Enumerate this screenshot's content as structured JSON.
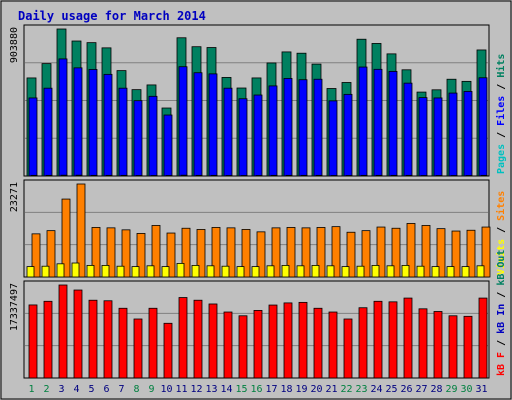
{
  "title": "Daily usage for March 2014",
  "colors": {
    "frame_bg": "#c0c0c0",
    "title": "#0000c0",
    "hits": "#008060",
    "files": "#0000ff",
    "pages": "#00c0c0",
    "visits": "#ffff00",
    "sites": "#ff8000",
    "kb_in": "#0000c0",
    "kb_out": "#008060",
    "kb_f": "#ff0000",
    "weekend_day": "#008040",
    "weekday_day": "#000080"
  },
  "chart_data": [
    {
      "type": "bar",
      "panel": "hits",
      "x": [
        1,
        2,
        3,
        4,
        5,
        6,
        7,
        8,
        9,
        10,
        11,
        12,
        13,
        14,
        15,
        16,
        17,
        18,
        19,
        20,
        21,
        22,
        23,
        24,
        25,
        26,
        27,
        28,
        29,
        30,
        31
      ],
      "ymax_label": "903880",
      "ylim": [
        0,
        903880
      ],
      "right_label": [
        "Pages",
        "Files",
        "Hits"
      ],
      "series": [
        {
          "name": "Hits",
          "values": [
            603000,
            691000,
            903880,
            830000,
            820000,
            788000,
            648000,
            531000,
            560000,
            418000,
            850000,
            795000,
            790000,
            606000,
            541000,
            603000,
            695000,
            763000,
            755000,
            688000,
            538000,
            575000,
            841000,
            815000,
            751000,
            653000,
            516000,
            530000,
            595000,
            582000,
            775000
          ]
        },
        {
          "name": "Files",
          "values": [
            480000,
            540000,
            720000,
            665000,
            655000,
            625000,
            540000,
            463000,
            490000,
            375000,
            672000,
            635000,
            628000,
            540000,
            475000,
            498000,
            554000,
            600000,
            592000,
            595000,
            462000,
            502000,
            670000,
            656000,
            643000,
            571000,
            482000,
            480000,
            510000,
            520000,
            604000
          ]
        },
        {
          "name": "Pages",
          "values": [
            4000,
            4000,
            5000,
            5000,
            4000,
            4000,
            4000,
            3000,
            3000,
            3000,
            5000,
            4000,
            4000,
            3000,
            3000,
            3000,
            4000,
            4000,
            4000,
            4000,
            3000,
            3000,
            4000,
            4000,
            4000,
            4000,
            3000,
            3000,
            3000,
            3000,
            4000
          ]
        }
      ]
    },
    {
      "type": "bar",
      "panel": "sites",
      "x": [
        1,
        2,
        3,
        4,
        5,
        6,
        7,
        8,
        9,
        10,
        11,
        12,
        13,
        14,
        15,
        16,
        17,
        18,
        19,
        20,
        21,
        22,
        23,
        24,
        25,
        26,
        27,
        28,
        29,
        30,
        31
      ],
      "ymax_label": "23271",
      "ylim": [
        0,
        23271
      ],
      "right_label": [
        "Visits",
        "Sites"
      ],
      "series": [
        {
          "name": "Sites",
          "values": [
            10800,
            11600,
            19500,
            23271,
            12400,
            12300,
            11800,
            10900,
            12900,
            11000,
            12200,
            11900,
            12400,
            12300,
            11900,
            11300,
            12300,
            12400,
            12300,
            12400,
            12600,
            11200,
            11600,
            12500,
            12200,
            13400,
            12900,
            12100,
            11500,
            11700,
            12500
          ]
        },
        {
          "name": "Visits",
          "values": [
            2600,
            2700,
            3300,
            3500,
            2900,
            2900,
            2700,
            2600,
            2800,
            2600,
            3400,
            2900,
            2800,
            2700,
            2600,
            2600,
            2800,
            2900,
            2800,
            2900,
            2800,
            2600,
            2700,
            2900,
            2800,
            2900,
            2700,
            2600,
            2600,
            2600,
            2800
          ]
        }
      ]
    },
    {
      "type": "bar",
      "panel": "kbytes",
      "x": [
        1,
        2,
        3,
        4,
        5,
        6,
        7,
        8,
        9,
        10,
        11,
        12,
        13,
        14,
        15,
        16,
        17,
        18,
        19,
        20,
        21,
        22,
        23,
        24,
        25,
        26,
        27,
        28,
        29,
        30,
        31
      ],
      "ymax_label": "17337497",
      "ylim": [
        0,
        17337497
      ],
      "right_label": [
        "kB F",
        "kB In",
        "kB Out"
      ],
      "series": [
        {
          "name": "kB F",
          "values": [
            13620000,
            14300000,
            17337497,
            16400000,
            14500000,
            14400000,
            13000000,
            11000000,
            13000000,
            10200000,
            15000000,
            14500000,
            13800000,
            12300000,
            11600000,
            12600000,
            13600000,
            14000000,
            14100000,
            13000000,
            12300000,
            11000000,
            13100000,
            14300000,
            14200000,
            14900000,
            12900000,
            12400000,
            11600000,
            11500000,
            14900000
          ]
        },
        {
          "name": "kB In",
          "values": [
            0,
            0,
            0,
            0,
            0,
            0,
            0,
            0,
            0,
            0,
            0,
            0,
            0,
            0,
            0,
            0,
            0,
            0,
            0,
            0,
            0,
            0,
            0,
            0,
            0,
            0,
            0,
            0,
            0,
            0,
            0
          ]
        },
        {
          "name": "kB Out",
          "values": [
            0,
            0,
            0,
            0,
            0,
            0,
            0,
            0,
            0,
            0,
            0,
            0,
            0,
            0,
            0,
            0,
            0,
            0,
            0,
            0,
            0,
            0,
            0,
            0,
            0,
            0,
            0,
            0,
            0,
            0,
            0
          ]
        }
      ]
    }
  ],
  "days": [
    "1",
    "2",
    "3",
    "4",
    "5",
    "6",
    "7",
    "8",
    "9",
    "10",
    "11",
    "12",
    "13",
    "14",
    "15",
    "16",
    "17",
    "18",
    "19",
    "20",
    "21",
    "22",
    "23",
    "24",
    "25",
    "26",
    "27",
    "28",
    "29",
    "30",
    "31"
  ],
  "weekend_days": [
    1,
    2,
    8,
    9,
    15,
    16,
    22,
    23,
    29,
    30
  ]
}
